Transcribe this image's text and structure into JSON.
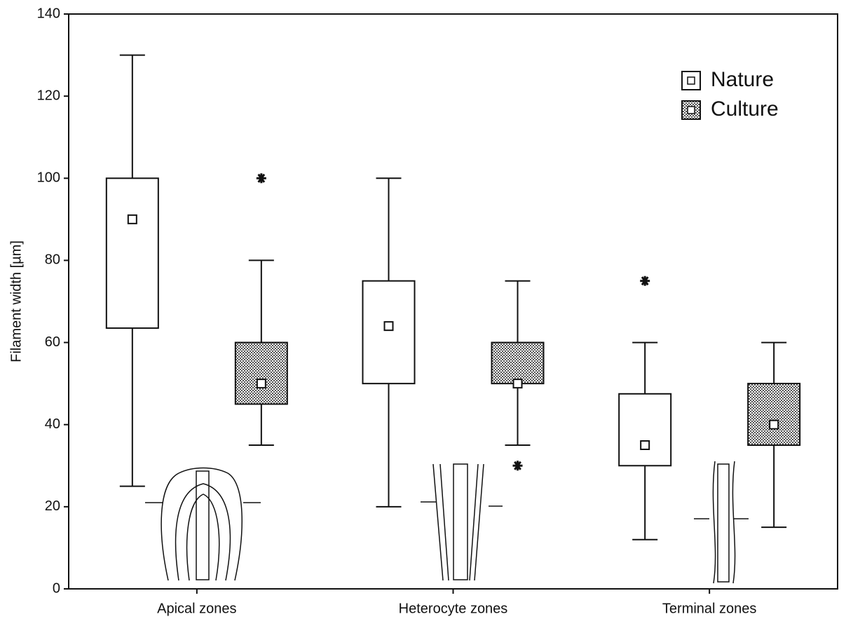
{
  "chart_data": {
    "type": "box",
    "y_label": "Filament width [µm]",
    "categories": [
      "Apical zones",
      "Heterocyte zones",
      "Terminal zones"
    ],
    "ylim": [
      0,
      140
    ],
    "yticks": [
      0,
      20,
      40,
      60,
      80,
      100,
      120,
      140
    ],
    "legend": "top-right",
    "series": [
      {
        "name": "Nature",
        "color": "#ffffff",
        "low": [
          25,
          20,
          12
        ],
        "q1": [
          63.5,
          50,
          30
        ],
        "q3": [
          100,
          75,
          47.5
        ],
        "high": [
          130,
          100,
          60
        ],
        "center": [
          90,
          64,
          35
        ],
        "outliers": [
          null,
          null,
          75
        ]
      },
      {
        "name": "Culture",
        "color": "#8c8c8c",
        "low": [
          35,
          35,
          15
        ],
        "q1": [
          45,
          50,
          35
        ],
        "q3": [
          60,
          60,
          50
        ],
        "high": [
          80,
          75,
          60
        ],
        "center": [
          50,
          50,
          40
        ],
        "outliers": [
          100,
          30,
          null
        ]
      }
    ]
  }
}
